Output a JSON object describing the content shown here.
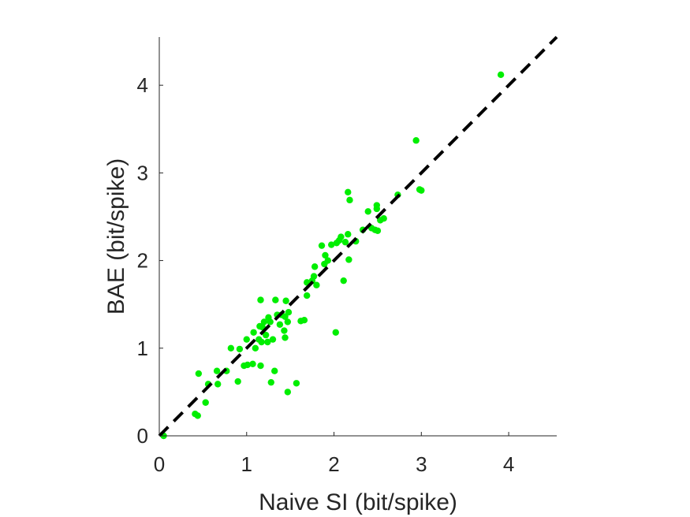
{
  "chart_data": {
    "type": "scatter",
    "title": "",
    "xlabel": "Naive SI (bit/spike)",
    "ylabel": "BAE (bit/spike)",
    "xlim": [
      0,
      4.55
    ],
    "ylim": [
      0,
      4.55
    ],
    "xticks": [
      0,
      1,
      2,
      3,
      4
    ],
    "yticks": [
      0,
      1,
      2,
      3,
      4
    ],
    "grid": false,
    "reference_line": {
      "style": "dashed",
      "color": "#000000",
      "slope": 1,
      "intercept": 0
    },
    "series": [
      {
        "color": "#00ee00",
        "points": [
          [
            0.05,
            0.0
          ],
          [
            0.41,
            0.25
          ],
          [
            0.44,
            0.23
          ],
          [
            0.45,
            0.71
          ],
          [
            0.53,
            0.38
          ],
          [
            0.56,
            0.59
          ],
          [
            0.66,
            0.74
          ],
          [
            0.67,
            0.59
          ],
          [
            0.77,
            0.74
          ],
          [
            0.82,
            1.0
          ],
          [
            0.9,
            0.62
          ],
          [
            0.92,
            0.99
          ],
          [
            0.97,
            0.8
          ],
          [
            1.0,
            1.1
          ],
          [
            1.01,
            0.81
          ],
          [
            1.07,
            0.82
          ],
          [
            1.08,
            1.18
          ],
          [
            1.1,
            1.0
          ],
          [
            1.14,
            1.1
          ],
          [
            1.15,
            1.25
          ],
          [
            1.16,
            0.8
          ],
          [
            1.16,
            1.55
          ],
          [
            1.17,
            1.07
          ],
          [
            1.18,
            1.24
          ],
          [
            1.2,
            1.3
          ],
          [
            1.22,
            1.15
          ],
          [
            1.24,
            1.07
          ],
          [
            1.25,
            1.35
          ],
          [
            1.27,
            1.3
          ],
          [
            1.28,
            0.61
          ],
          [
            1.3,
            1.1
          ],
          [
            1.32,
            0.74
          ],
          [
            1.33,
            1.55
          ],
          [
            1.35,
            1.38
          ],
          [
            1.38,
            1.27
          ],
          [
            1.4,
            1.38
          ],
          [
            1.43,
            1.2
          ],
          [
            1.44,
            1.12
          ],
          [
            1.44,
            1.36
          ],
          [
            1.45,
            1.54
          ],
          [
            1.47,
            1.3
          ],
          [
            1.47,
            0.5
          ],
          [
            1.48,
            1.41
          ],
          [
            1.57,
            0.6
          ],
          [
            1.62,
            1.31
          ],
          [
            1.66,
            1.32
          ],
          [
            1.69,
            1.6
          ],
          [
            1.69,
            1.75
          ],
          [
            1.75,
            1.77
          ],
          [
            1.77,
            1.82
          ],
          [
            1.78,
            1.93
          ],
          [
            1.8,
            1.72
          ],
          [
            1.86,
            2.17
          ],
          [
            1.89,
            1.96
          ],
          [
            1.9,
            2.06
          ],
          [
            1.93,
            2.0
          ],
          [
            1.97,
            2.18
          ],
          [
            2.02,
            1.18
          ],
          [
            2.03,
            2.2
          ],
          [
            2.06,
            2.23
          ],
          [
            2.08,
            2.27
          ],
          [
            2.11,
            1.77
          ],
          [
            2.13,
            2.21
          ],
          [
            2.16,
            2.3
          ],
          [
            2.16,
            2.78
          ],
          [
            2.17,
            2.01
          ],
          [
            2.18,
            2.69
          ],
          [
            2.25,
            2.22
          ],
          [
            2.33,
            2.35
          ],
          [
            2.39,
            2.56
          ],
          [
            2.43,
            2.37
          ],
          [
            2.47,
            2.35
          ],
          [
            2.49,
            2.63
          ],
          [
            2.49,
            2.59
          ],
          [
            2.5,
            2.34
          ],
          [
            2.53,
            2.46
          ],
          [
            2.57,
            2.48
          ],
          [
            2.73,
            2.75
          ],
          [
            2.94,
            3.37
          ],
          [
            2.98,
            2.81
          ],
          [
            3.0,
            2.8
          ],
          [
            3.91,
            4.12
          ]
        ]
      }
    ]
  }
}
